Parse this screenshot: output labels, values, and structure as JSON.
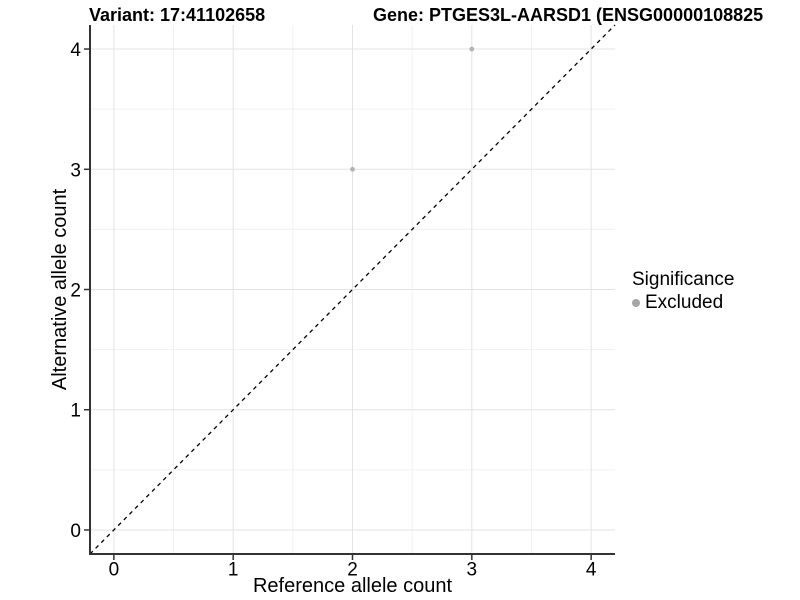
{
  "chart_data": {
    "type": "scatter",
    "title": "Variant: 17:41102658",
    "subtitle": "Gene: PTGES3L-AARSD1 (ENSG00000108825",
    "xlabel": "Reference allele count",
    "ylabel": "Alternative allele count",
    "xlim": [
      -0.2,
      4.2
    ],
    "ylim": [
      -0.2,
      4.2
    ],
    "x_ticks": [
      0,
      1,
      2,
      3,
      4
    ],
    "y_ticks": [
      0,
      1,
      2,
      3,
      4
    ],
    "grid": {
      "major": true,
      "minor": true
    },
    "identity_line": {
      "slope": 1,
      "intercept": 0,
      "style": "dashed",
      "color": "#000000"
    },
    "series": [
      {
        "name": "Excluded",
        "color": "#b3b3b3",
        "points": [
          {
            "x": 2,
            "y": 3
          },
          {
            "x": 3,
            "y": 4
          }
        ]
      }
    ],
    "legend": {
      "title": "Significance",
      "position": "right",
      "items": [
        {
          "label": "Excluded",
          "color": "#a6a6a6"
        }
      ]
    },
    "style": {
      "axis_color": "#333333",
      "grid_major_color": "#e3e3e3",
      "grid_minor_color": "#f0f0f0",
      "text_color": "#000000",
      "background": "#ffffff"
    }
  }
}
